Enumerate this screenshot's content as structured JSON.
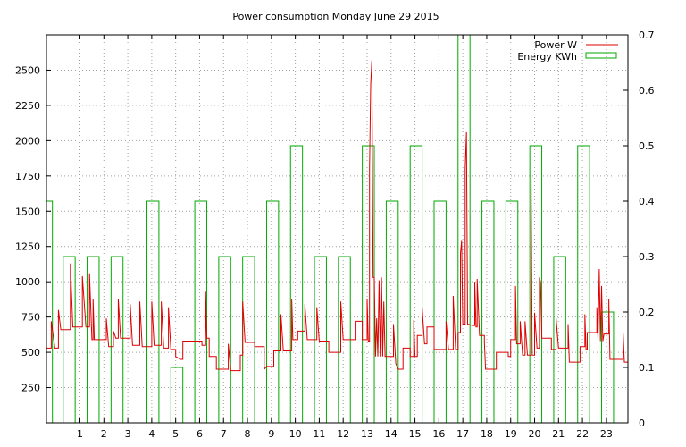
{
  "chart_data": {
    "type": "line",
    "title": "Power consumption Monday June 29 2015",
    "legend_position": "top-right",
    "grid": true,
    "x_range": [
      -0.4,
      23.9
    ],
    "x_ticks": [
      1,
      2,
      3,
      4,
      5,
      6,
      7,
      8,
      9,
      10,
      11,
      12,
      13,
      14,
      15,
      16,
      17,
      18,
      19,
      20,
      21,
      22,
      23
    ],
    "y_left_range": [
      0,
      2750
    ],
    "y_left_ticks": [
      250,
      500,
      750,
      1000,
      1250,
      1500,
      1750,
      2000,
      2250,
      2500
    ],
    "y_right_range": [
      0,
      0.7
    ],
    "y_right_ticks": [
      0,
      0.1,
      0.2,
      0.3,
      0.4,
      0.5,
      0.6,
      0.7
    ],
    "series": [
      {
        "name": "Power W",
        "color": "#dd0000",
        "axis": "left",
        "style": "step",
        "points": [
          [
            -0.4,
            530
          ],
          [
            -0.2,
            530
          ],
          [
            -0.2,
            720
          ],
          [
            -0.05,
            530
          ],
          [
            0.1,
            530
          ],
          [
            0.1,
            800
          ],
          [
            0.2,
            660
          ],
          [
            0.6,
            660
          ],
          [
            0.6,
            1130
          ],
          [
            0.7,
            680
          ],
          [
            1.1,
            680
          ],
          [
            1.1,
            1040
          ],
          [
            1.25,
            680
          ],
          [
            1.4,
            680
          ],
          [
            1.4,
            1060
          ],
          [
            1.5,
            590
          ],
          [
            1.55,
            590
          ],
          [
            1.55,
            880
          ],
          [
            1.6,
            590
          ],
          [
            2.1,
            590
          ],
          [
            2.1,
            740
          ],
          [
            2.2,
            540
          ],
          [
            2.4,
            540
          ],
          [
            2.4,
            650
          ],
          [
            2.5,
            600
          ],
          [
            2.6,
            600
          ],
          [
            2.6,
            880
          ],
          [
            2.7,
            600
          ],
          [
            3.1,
            600
          ],
          [
            3.1,
            840
          ],
          [
            3.2,
            550
          ],
          [
            3.5,
            550
          ],
          [
            3.5,
            860
          ],
          [
            3.6,
            540
          ],
          [
            4.0,
            540
          ],
          [
            4.0,
            860
          ],
          [
            4.1,
            550
          ],
          [
            4.4,
            550
          ],
          [
            4.4,
            860
          ],
          [
            4.5,
            530
          ],
          [
            4.7,
            530
          ],
          [
            4.7,
            820
          ],
          [
            4.8,
            520
          ],
          [
            5.0,
            520
          ],
          [
            5.0,
            470
          ],
          [
            5.2,
            450
          ],
          [
            5.3,
            450
          ],
          [
            5.3,
            580
          ],
          [
            6.1,
            580
          ],
          [
            6.1,
            550
          ],
          [
            6.25,
            550
          ],
          [
            6.25,
            930
          ],
          [
            6.3,
            600
          ],
          [
            6.4,
            600
          ],
          [
            6.4,
            470
          ],
          [
            6.7,
            470
          ],
          [
            6.7,
            380
          ],
          [
            7.2,
            380
          ],
          [
            7.2,
            560
          ],
          [
            7.3,
            370
          ],
          [
            7.7,
            370
          ],
          [
            7.7,
            480
          ],
          [
            7.8,
            480
          ],
          [
            7.8,
            860
          ],
          [
            7.9,
            570
          ],
          [
            8.3,
            570
          ],
          [
            8.3,
            540
          ],
          [
            8.7,
            540
          ],
          [
            8.7,
            380
          ],
          [
            8.8,
            400
          ],
          [
            9.1,
            400
          ],
          [
            9.1,
            510
          ],
          [
            9.4,
            510
          ],
          [
            9.4,
            770
          ],
          [
            9.5,
            510
          ],
          [
            9.85,
            510
          ],
          [
            9.85,
            880
          ],
          [
            9.9,
            590
          ],
          [
            10.1,
            590
          ],
          [
            10.1,
            650
          ],
          [
            10.4,
            650
          ],
          [
            10.4,
            840
          ],
          [
            10.5,
            590
          ],
          [
            10.9,
            590
          ],
          [
            10.9,
            820
          ],
          [
            11.0,
            580
          ],
          [
            11.4,
            580
          ],
          [
            11.4,
            500
          ],
          [
            11.9,
            500
          ],
          [
            11.9,
            860
          ],
          [
            12.0,
            590
          ],
          [
            12.5,
            590
          ],
          [
            12.5,
            720
          ],
          [
            12.8,
            720
          ],
          [
            12.8,
            590
          ],
          [
            13.0,
            590
          ],
          [
            13.0,
            880
          ],
          [
            13.05,
            580
          ],
          [
            13.1,
            580
          ],
          [
            13.1,
            1800
          ],
          [
            13.15,
            2400
          ],
          [
            13.2,
            2570
          ],
          [
            13.25,
            1030
          ],
          [
            13.3,
            1030
          ],
          [
            13.35,
            470
          ],
          [
            13.4,
            740
          ],
          [
            13.45,
            470
          ],
          [
            13.5,
            1010
          ],
          [
            13.55,
            470
          ],
          [
            13.6,
            1030
          ],
          [
            13.65,
            470
          ],
          [
            13.7,
            860
          ],
          [
            13.75,
            470
          ],
          [
            14.1,
            470
          ],
          [
            14.1,
            700
          ],
          [
            14.2,
            420
          ],
          [
            14.3,
            380
          ],
          [
            14.5,
            380
          ],
          [
            14.5,
            530
          ],
          [
            14.8,
            530
          ],
          [
            14.8,
            470
          ],
          [
            14.95,
            470
          ],
          [
            14.95,
            730
          ],
          [
            15.0,
            470
          ],
          [
            15.1,
            470
          ],
          [
            15.1,
            620
          ],
          [
            15.3,
            620
          ],
          [
            15.3,
            820
          ],
          [
            15.4,
            560
          ],
          [
            15.5,
            560
          ],
          [
            15.5,
            680
          ],
          [
            15.8,
            680
          ],
          [
            15.8,
            520
          ],
          [
            16.3,
            520
          ],
          [
            16.3,
            720
          ],
          [
            16.4,
            520
          ],
          [
            16.6,
            520
          ],
          [
            16.6,
            900
          ],
          [
            16.7,
            520
          ],
          [
            16.8,
            520
          ],
          [
            16.8,
            640
          ],
          [
            16.9,
            640
          ],
          [
            16.9,
            1200
          ],
          [
            16.95,
            1290
          ],
          [
            17.0,
            700
          ],
          [
            17.1,
            700
          ],
          [
            17.1,
            1800
          ],
          [
            17.15,
            2060
          ],
          [
            17.2,
            700
          ],
          [
            17.4,
            690
          ],
          [
            17.5,
            690
          ],
          [
            17.5,
            1000
          ],
          [
            17.55,
            680
          ],
          [
            17.6,
            680
          ],
          [
            17.6,
            1020
          ],
          [
            17.7,
            620
          ],
          [
            17.9,
            620
          ],
          [
            17.9,
            570
          ],
          [
            17.95,
            380
          ],
          [
            18.4,
            380
          ],
          [
            18.4,
            500
          ],
          [
            18.9,
            500
          ],
          [
            18.9,
            470
          ],
          [
            19.0,
            470
          ],
          [
            19.0,
            590
          ],
          [
            19.2,
            590
          ],
          [
            19.2,
            970
          ],
          [
            19.25,
            560
          ],
          [
            19.4,
            560
          ],
          [
            19.4,
            720
          ],
          [
            19.5,
            480
          ],
          [
            19.6,
            480
          ],
          [
            19.6,
            720
          ],
          [
            19.7,
            480
          ],
          [
            19.85,
            480
          ],
          [
            19.85,
            1800
          ],
          [
            19.9,
            480
          ],
          [
            20.0,
            480
          ],
          [
            20.0,
            780
          ],
          [
            20.1,
            530
          ],
          [
            20.2,
            530
          ],
          [
            20.2,
            1030
          ],
          [
            20.25,
            1000
          ],
          [
            20.3,
            600
          ],
          [
            20.7,
            600
          ],
          [
            20.7,
            520
          ],
          [
            20.9,
            520
          ],
          [
            20.9,
            740
          ],
          [
            21.0,
            530
          ],
          [
            21.4,
            530
          ],
          [
            21.4,
            700
          ],
          [
            21.45,
            430
          ],
          [
            21.9,
            430
          ],
          [
            21.9,
            540
          ],
          [
            22.1,
            540
          ],
          [
            22.1,
            770
          ],
          [
            22.15,
            520
          ],
          [
            22.2,
            520
          ],
          [
            22.2,
            640
          ],
          [
            22.6,
            640
          ],
          [
            22.6,
            820
          ],
          [
            22.65,
            600
          ],
          [
            22.7,
            1090
          ],
          [
            22.75,
            580
          ],
          [
            22.8,
            970
          ],
          [
            22.85,
            580
          ],
          [
            22.9,
            630
          ],
          [
            23.1,
            630
          ],
          [
            23.1,
            880
          ],
          [
            23.15,
            450
          ],
          [
            23.7,
            450
          ],
          [
            23.7,
            640
          ],
          [
            23.75,
            430
          ],
          [
            23.9,
            430
          ],
          [
            23.9,
            540
          ]
        ]
      },
      {
        "name": "Energy KWh",
        "color": "#00aa00",
        "axis": "right",
        "style": "bars",
        "bars": [
          {
            "x0": -0.4,
            "x1": -0.15,
            "v": 0.4
          },
          {
            "x0": 0.3,
            "x1": 0.8,
            "v": 0.3
          },
          {
            "x0": 1.3,
            "x1": 1.8,
            "v": 0.3
          },
          {
            "x0": 2.3,
            "x1": 2.8,
            "v": 0.3
          },
          {
            "x0": 3.8,
            "x1": 4.3,
            "v": 0.4
          },
          {
            "x0": 4.8,
            "x1": 5.3,
            "v": 0.1
          },
          {
            "x0": 5.8,
            "x1": 6.3,
            "v": 0.4
          },
          {
            "x0": 6.8,
            "x1": 7.3,
            "v": 0.3
          },
          {
            "x0": 7.8,
            "x1": 8.3,
            "v": 0.3
          },
          {
            "x0": 8.8,
            "x1": 9.3,
            "v": 0.4
          },
          {
            "x0": 9.8,
            "x1": 10.3,
            "v": 0.5
          },
          {
            "x0": 10.8,
            "x1": 11.3,
            "v": 0.3
          },
          {
            "x0": 11.8,
            "x1": 12.3,
            "v": 0.3
          },
          {
            "x0": 12.8,
            "x1": 13.3,
            "v": 0.5
          },
          {
            "x0": 13.8,
            "x1": 14.3,
            "v": 0.4
          },
          {
            "x0": 14.8,
            "x1": 15.3,
            "v": 0.5
          },
          {
            "x0": 15.8,
            "x1": 16.3,
            "v": 0.4
          },
          {
            "x0": 16.8,
            "x1": 17.3,
            "v": 0.7
          },
          {
            "x0": 17.8,
            "x1": 18.3,
            "v": 0.4
          },
          {
            "x0": 18.8,
            "x1": 19.3,
            "v": 0.4
          },
          {
            "x0": 19.8,
            "x1": 20.3,
            "v": 0.5
          },
          {
            "x0": 20.8,
            "x1": 21.3,
            "v": 0.3
          },
          {
            "x0": 21.8,
            "x1": 22.3,
            "v": 0.5
          },
          {
            "x0": 22.8,
            "x1": 23.3,
            "v": 0.2
          }
        ]
      }
    ]
  }
}
